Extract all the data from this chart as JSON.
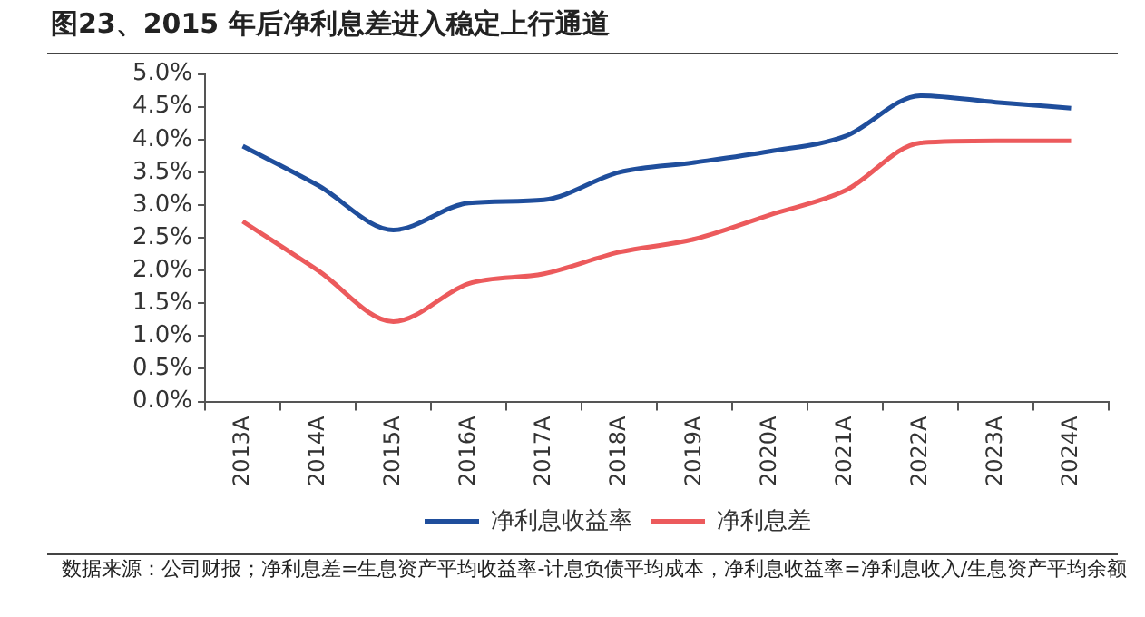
{
  "chart_data": {
    "type": "line",
    "title": "图23、2015 年后净利息差进入稳定上行通道",
    "categories": [
      "2013A",
      "2014A",
      "2015A",
      "2016A",
      "2017A",
      "2018A",
      "2019A",
      "2020A",
      "2021A",
      "2022A",
      "2023A",
      "2024A"
    ],
    "series": [
      {
        "name": "净利息收益率",
        "color": "#1f4e9c",
        "values": [
          3.9,
          3.3,
          2.62,
          3.03,
          3.08,
          3.5,
          3.65,
          3.82,
          4.05,
          4.67,
          4.57,
          4.48
        ]
      },
      {
        "name": "净利息差",
        "color": "#ec5a5c",
        "values": [
          2.75,
          2.0,
          1.22,
          1.8,
          1.95,
          2.28,
          2.48,
          2.85,
          3.22,
          3.95,
          3.98,
          3.98
        ]
      }
    ],
    "ylim": [
      0,
      5
    ],
    "yticks": [
      {
        "value": 0,
        "label": "0.0%"
      },
      {
        "value": 0.5,
        "label": "0.5%"
      },
      {
        "value": 1,
        "label": "1.0%"
      },
      {
        "value": 1.5,
        "label": "1.5%"
      },
      {
        "value": 2,
        "label": "2.0%"
      },
      {
        "value": 2.5,
        "label": "2.5%"
      },
      {
        "value": 3,
        "label": "3.0%"
      },
      {
        "value": 3.5,
        "label": "3.5%"
      },
      {
        "value": 4,
        "label": "4.0%"
      },
      {
        "value": 4.5,
        "label": "4.5%"
      },
      {
        "value": 5,
        "label": "5.0%"
      }
    ],
    "grid": false,
    "legend": "bottom",
    "marker": "none",
    "line_style": "solid",
    "annotations": [
      "数据来源：公司财报；净利息差=生息资产平均收益率-计息负债平均成本，净利息收益率=净利息收入/生息资产平均余额"
    ]
  }
}
